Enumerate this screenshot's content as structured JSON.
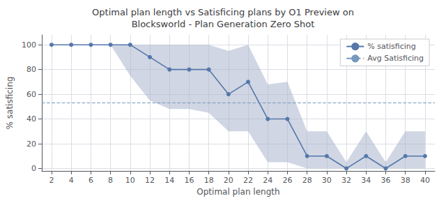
{
  "chart_data": {
    "type": "line",
    "title": "Optimal plan length vs Satisficing plans by O1 Preview on\nBlocksworld - Plan Generation Zero Shot",
    "xlabel": "Optimal plan length",
    "ylabel": "% satisficing",
    "x": [
      2,
      4,
      6,
      8,
      10,
      12,
      14,
      16,
      18,
      20,
      22,
      24,
      26,
      28,
      30,
      32,
      34,
      36,
      38,
      40
    ],
    "series": [
      {
        "type": "band",
        "color": "#aab4cc",
        "lower": [
          100,
          100,
          100,
          100,
          75,
          55,
          48,
          48,
          45,
          30,
          30,
          5,
          5,
          0,
          0,
          0,
          0,
          0,
          0,
          0
        ],
        "upper": [
          100,
          100,
          100,
          100,
          100,
          100,
          100,
          100,
          100,
          95,
          100,
          68,
          70,
          30,
          30,
          5,
          30,
          5,
          30,
          30
        ]
      },
      {
        "type": "line",
        "name": "% satisficing",
        "color": "#5577aa",
        "marker": "circle",
        "line_style": "solid",
        "values": [
          100,
          100,
          100,
          100,
          100,
          90,
          80,
          80,
          80,
          60,
          70,
          40,
          40,
          10,
          10,
          0,
          10,
          0,
          10,
          10
        ]
      },
      {
        "type": "hline",
        "name": "Avg Satisficing",
        "color": "#7799bb",
        "line_style": "dashed",
        "value": 53
      }
    ],
    "xlim": [
      1,
      41
    ],
    "ylim": [
      -2,
      108
    ],
    "xticks": [
      2,
      4,
      6,
      8,
      10,
      12,
      14,
      16,
      18,
      20,
      22,
      24,
      26,
      28,
      30,
      32,
      34,
      36,
      38,
      40
    ],
    "yticks": [
      0,
      20,
      40,
      60,
      80,
      100
    ],
    "grid": true,
    "legend": "upper right"
  }
}
